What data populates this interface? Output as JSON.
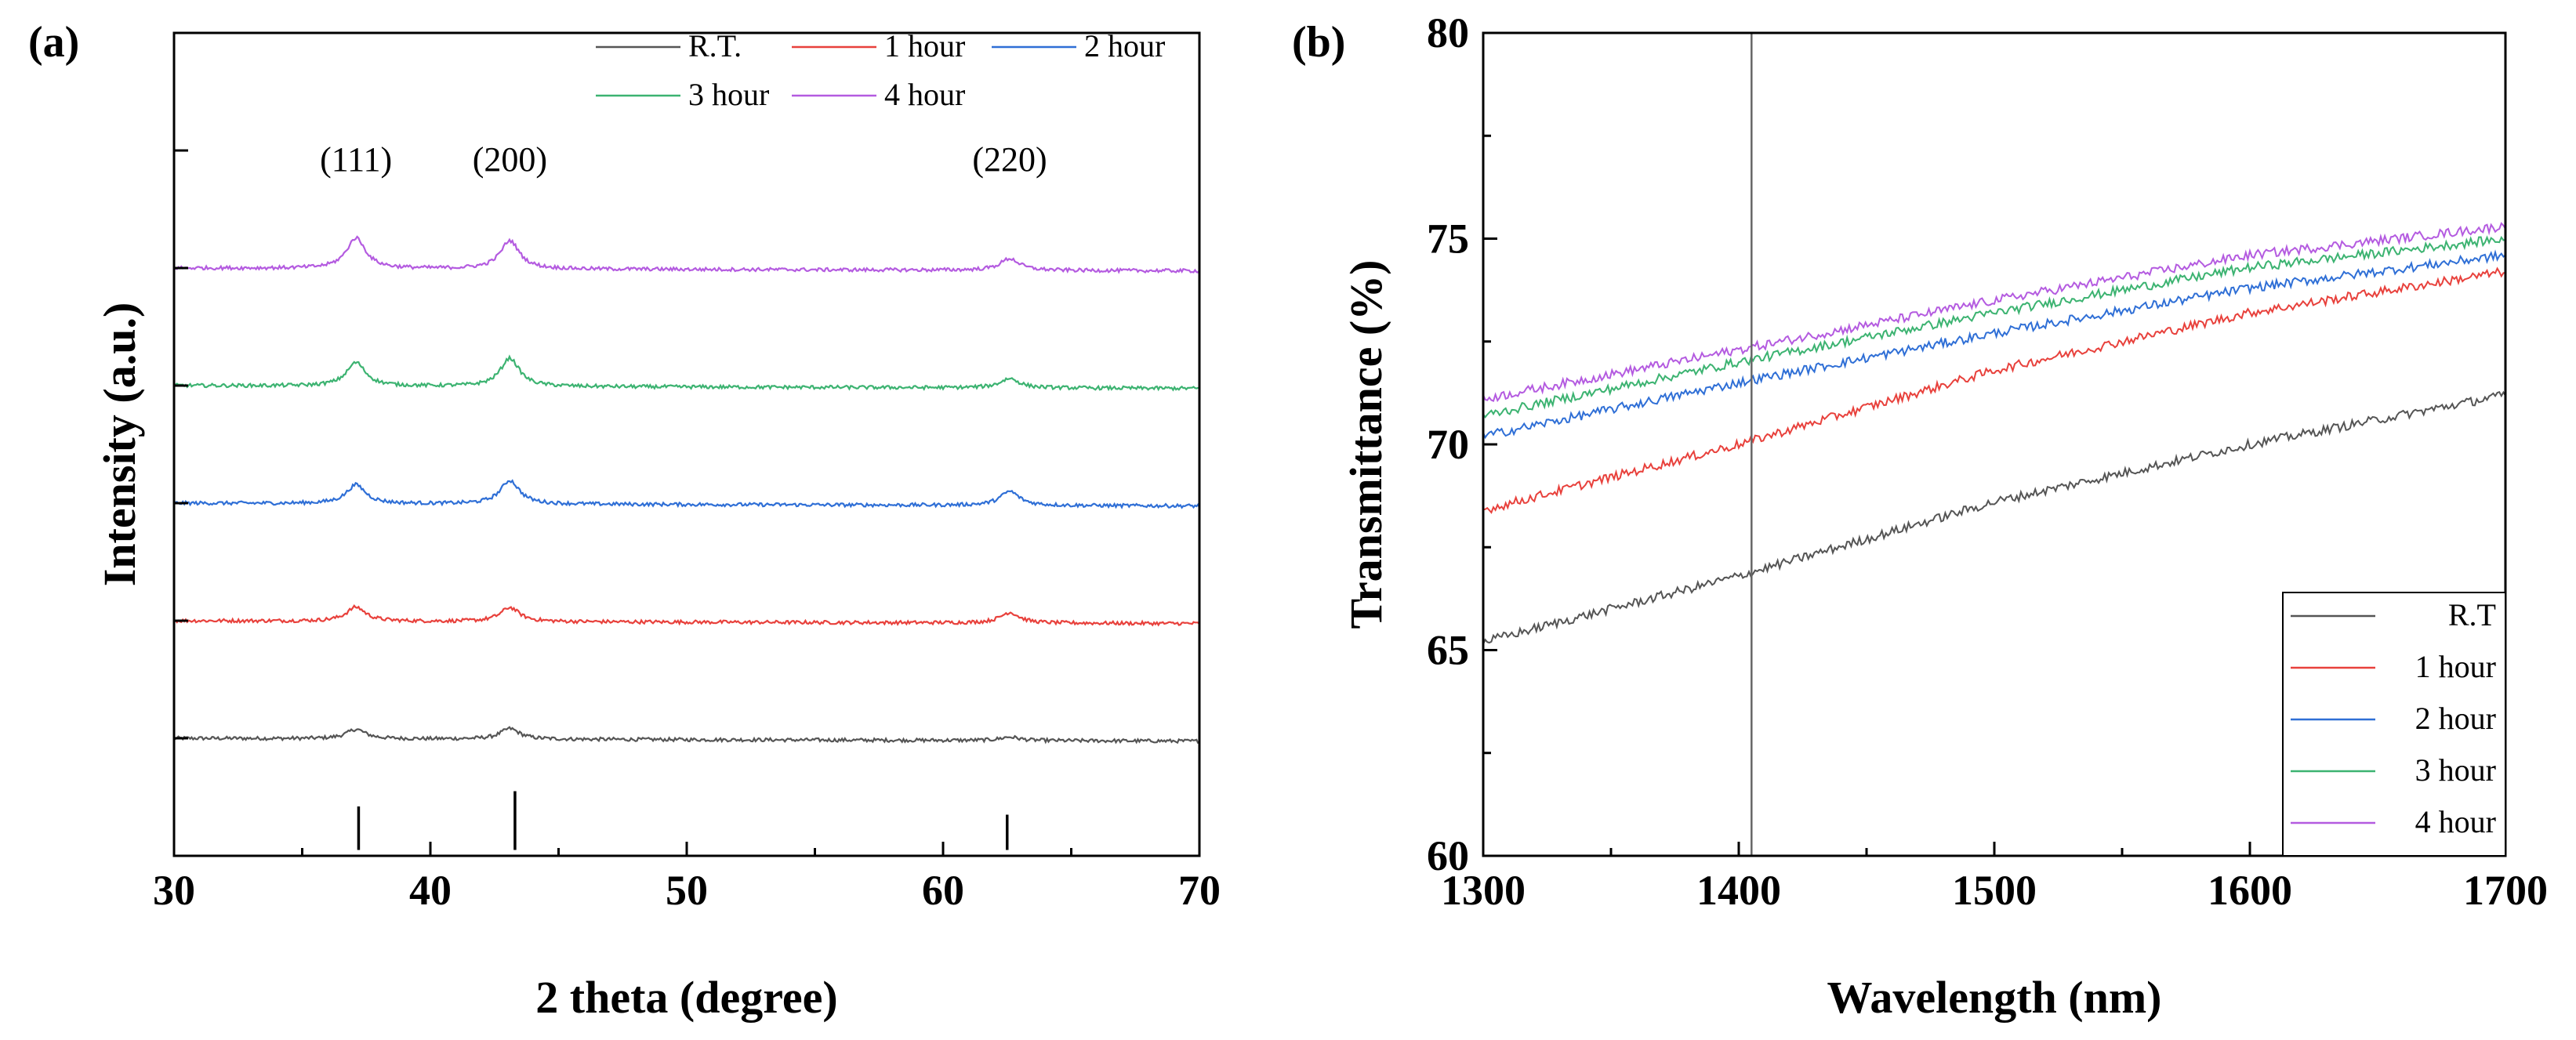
{
  "chart_data": [
    {
      "panel": "(a)",
      "type": "line",
      "title": "",
      "xlabel": "2 theta (degree)",
      "ylabel": "Intensity (a.u.)",
      "xlim": [
        30,
        70
      ],
      "xticks": [
        30,
        40,
        50,
        60,
        70
      ],
      "yticks_labeled": false,
      "ylim": [
        -1.0,
        6.0
      ],
      "legend_position": "top",
      "series": [
        {
          "name": "R.T.",
          "color": "#555555",
          "baseline": 0.0,
          "peak_heights": [
            0.08,
            0.09,
            0.03
          ]
        },
        {
          "name": "1 hour",
          "color": "#e8413c",
          "baseline": 1.0,
          "peak_heights": [
            0.12,
            0.12,
            0.09
          ]
        },
        {
          "name": "2 hour",
          "color": "#2f6fd6",
          "baseline": 2.0,
          "peak_heights": [
            0.16,
            0.2,
            0.12
          ]
        },
        {
          "name": "3 hour",
          "color": "#3cb371",
          "baseline": 3.0,
          "peak_heights": [
            0.2,
            0.24,
            0.08
          ]
        },
        {
          "name": "4 hour",
          "color": "#b45be0",
          "baseline": 4.0,
          "peak_heights": [
            0.26,
            0.24,
            0.1
          ]
        }
      ],
      "peaks": [
        37.1,
        43.1,
        62.6
      ],
      "annotations": [
        {
          "text": "(111)",
          "x": 37.1
        },
        {
          "text": "(200)",
          "x": 43.1
        },
        {
          "text": "(220)",
          "x": 62.6
        }
      ],
      "reference_lines": [
        {
          "x": 37.2,
          "height": 0.37
        },
        {
          "x": 43.3,
          "height": 0.5
        },
        {
          "x": 62.5,
          "height": 0.3
        }
      ]
    },
    {
      "panel": "(b)",
      "type": "line",
      "title": "",
      "xlabel": "Wavelength (nm)",
      "ylabel": "Transmittance (%)",
      "xlim": [
        1300,
        1700
      ],
      "ylim": [
        60,
        80
      ],
      "xticks": [
        1300,
        1400,
        1500,
        1600,
        1700
      ],
      "yticks": [
        60,
        65,
        70,
        75,
        80
      ],
      "vertical_line_x": 1405,
      "legend_position": "bottom-right",
      "series": [
        {
          "name": "R.T",
          "color": "#555555",
          "x": [
            1300,
            1400,
            1500,
            1600,
            1700
          ],
          "y": [
            65.2,
            66.8,
            68.6,
            70.0,
            71.2
          ]
        },
        {
          "name": "1 hour",
          "color": "#e8413c",
          "x": [
            1300,
            1400,
            1500,
            1600,
            1700
          ],
          "y": [
            68.4,
            70.0,
            71.8,
            73.2,
            74.2
          ]
        },
        {
          "name": "2 hour",
          "color": "#2f6fd6",
          "x": [
            1300,
            1400,
            1500,
            1600,
            1700
          ],
          "y": [
            70.2,
            71.5,
            72.7,
            73.8,
            74.6
          ]
        },
        {
          "name": "3 hour",
          "color": "#3cb371",
          "x": [
            1300,
            1400,
            1500,
            1600,
            1700
          ],
          "y": [
            70.7,
            72.0,
            73.2,
            74.3,
            75.0
          ]
        },
        {
          "name": "4 hour",
          "color": "#b45be0",
          "x": [
            1300,
            1400,
            1500,
            1600,
            1700
          ],
          "y": [
            71.1,
            72.3,
            73.5,
            74.6,
            75.3
          ]
        }
      ]
    }
  ]
}
